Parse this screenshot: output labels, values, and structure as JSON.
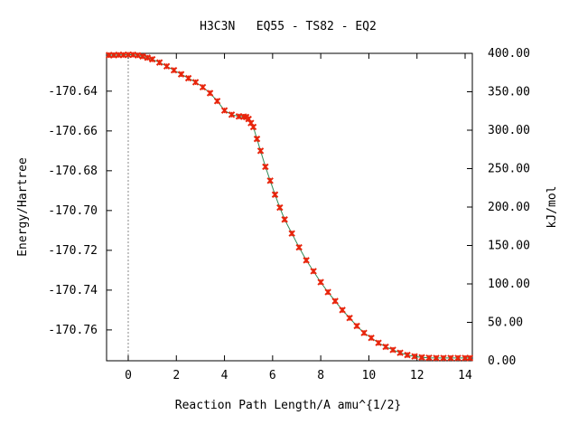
{
  "chart_data": {
    "type": "scatter",
    "title": "H3C3N   EQ55 - TS82 - EQ2",
    "xlabel": "Reaction Path Length/A amu^{1/2}",
    "ylabel": "Energy/Hartree",
    "y2label": "kJ/mol",
    "xlim": [
      -0.9,
      14.3
    ],
    "ylim": [
      -170.7755,
      -170.621
    ],
    "y2lim": [
      0,
      400
    ],
    "x_ticks": [
      0,
      2,
      4,
      6,
      8,
      10,
      12,
      14
    ],
    "x_tick_labels": [
      "0",
      "2",
      "4",
      "6",
      "8",
      "10",
      "12",
      "14"
    ],
    "y_ticks": [
      -170.64,
      -170.66,
      -170.68,
      -170.7,
      -170.72,
      -170.74,
      -170.76
    ],
    "y_tick_labels": [
      "-170.64",
      "-170.66",
      "-170.68",
      "-170.70",
      "-170.72",
      "-170.74",
      "-170.76"
    ],
    "y2_ticks": [
      0,
      50,
      100,
      150,
      200,
      250,
      300,
      350,
      400
    ],
    "y2_tick_labels": [
      "0.00",
      "50.00",
      "100.00",
      "150.00",
      "200.00",
      "250.00",
      "300.00",
      "350.00",
      "400.00"
    ],
    "vline_x": 0,
    "grid": false,
    "legend": "none",
    "marker_color": "#e8250c",
    "line_color": "#2e8b57",
    "series": [
      {
        "x": [
          -0.8,
          -0.6,
          -0.4,
          -0.2,
          0.0,
          0.2,
          0.4,
          0.6,
          0.8,
          1.0,
          1.3,
          1.6,
          1.9,
          2.2,
          2.5,
          2.8,
          3.1,
          3.4,
          3.7,
          4.0,
          4.3,
          4.6,
          4.8,
          4.9,
          5.0,
          5.1,
          5.2,
          5.35,
          5.5,
          5.7,
          5.9,
          6.1,
          6.3,
          6.5,
          6.8,
          7.1,
          7.4,
          7.7,
          8.0,
          8.3,
          8.6,
          8.9,
          9.2,
          9.5,
          9.8,
          10.1,
          10.4,
          10.7,
          11.0,
          11.3,
          11.6,
          11.9,
          12.2,
          12.5,
          12.8,
          13.1,
          13.4,
          13.7,
          14.0,
          14.2
        ],
        "y": [
          -170.6219,
          -170.6219,
          -170.6218,
          -170.6218,
          -170.6217,
          -170.6217,
          -170.622,
          -170.6225,
          -170.6232,
          -170.624,
          -170.6256,
          -170.6275,
          -170.6295,
          -170.6315,
          -170.6335,
          -170.6355,
          -170.638,
          -170.641,
          -170.645,
          -170.6497,
          -170.6518,
          -170.6527,
          -170.6528,
          -170.653,
          -170.654,
          -170.656,
          -170.658,
          -170.664,
          -170.67,
          -170.678,
          -170.685,
          -170.692,
          -170.6985,
          -170.7045,
          -170.7115,
          -170.7185,
          -170.725,
          -170.7305,
          -170.736,
          -170.741,
          -170.7455,
          -170.75,
          -170.754,
          -170.758,
          -170.7615,
          -170.764,
          -170.7665,
          -170.7685,
          -170.77,
          -170.7715,
          -170.7726,
          -170.7733,
          -170.7738,
          -170.774,
          -170.7741,
          -170.7741,
          -170.7741,
          -170.7741,
          -170.7741,
          -170.7741
        ]
      }
    ]
  }
}
